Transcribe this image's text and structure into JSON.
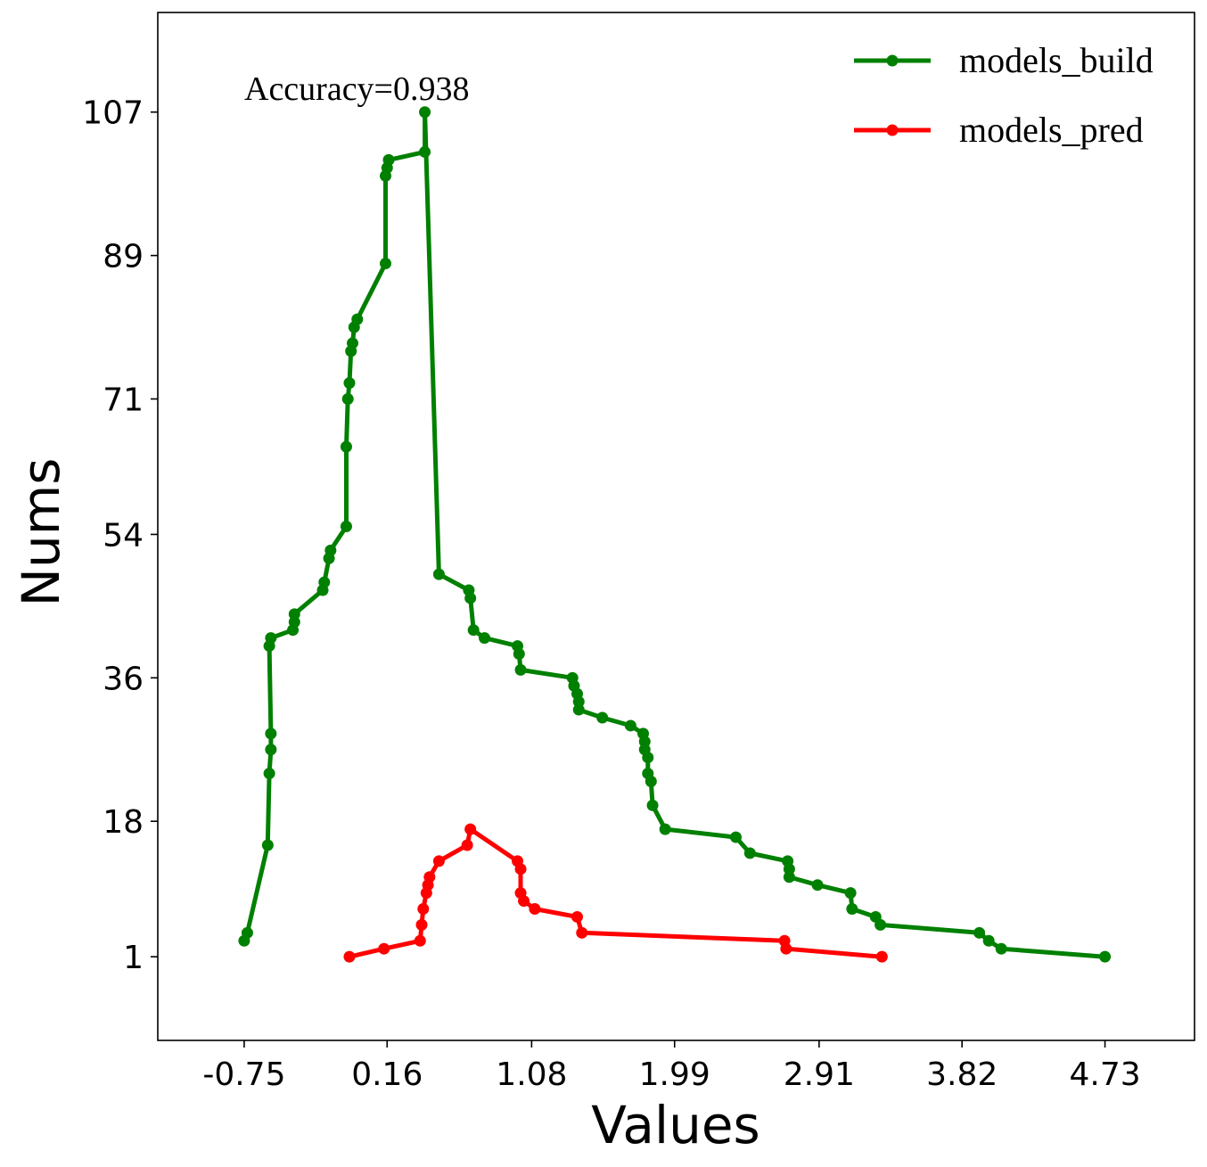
{
  "chart_data": {
    "type": "line",
    "xlabel": "Values",
    "ylabel": "Nums",
    "xlim": [
      -1.3,
      5.3
    ],
    "ylim": [
      -9.5,
      119.5
    ],
    "xticks": [
      -0.75,
      0.16,
      1.08,
      1.99,
      2.91,
      3.82,
      4.73
    ],
    "xtick_labels": [
      "-0.75",
      "0.16",
      "1.08",
      "1.99",
      "2.91",
      "3.82",
      "4.73"
    ],
    "yticks": [
      1,
      18,
      36,
      54,
      71,
      89,
      107
    ],
    "ytick_labels": [
      "1",
      "18",
      "36",
      "54",
      "71",
      "89",
      "107"
    ],
    "grid": false,
    "legend_position": "top-right",
    "annotation": "Accuracy=0.938",
    "series": [
      {
        "name": "models_build",
        "color": "#008000",
        "points": [
          [
            -0.75,
            3
          ],
          [
            -0.73,
            4
          ],
          [
            -0.6,
            15
          ],
          [
            -0.59,
            24
          ],
          [
            -0.58,
            27
          ],
          [
            -0.58,
            29
          ],
          [
            -0.59,
            40
          ],
          [
            -0.58,
            41
          ],
          [
            -0.44,
            42
          ],
          [
            -0.43,
            43
          ],
          [
            -0.43,
            44
          ],
          [
            -0.25,
            47
          ],
          [
            -0.24,
            48
          ],
          [
            -0.21,
            51
          ],
          [
            -0.2,
            52
          ],
          [
            -0.1,
            55
          ],
          [
            -0.1,
            65
          ],
          [
            -0.09,
            71
          ],
          [
            -0.08,
            73
          ],
          [
            -0.07,
            77
          ],
          [
            -0.06,
            78
          ],
          [
            -0.05,
            80
          ],
          [
            -0.03,
            81
          ],
          [
            0.15,
            88
          ],
          [
            0.15,
            99
          ],
          [
            0.16,
            100
          ],
          [
            0.17,
            101
          ],
          [
            0.4,
            102
          ],
          [
            0.4,
            107
          ],
          [
            0.49,
            49
          ],
          [
            0.68,
            47
          ],
          [
            0.69,
            46
          ],
          [
            0.71,
            42
          ],
          [
            0.78,
            41
          ],
          [
            0.99,
            40
          ],
          [
            1.0,
            39
          ],
          [
            1.01,
            37
          ],
          [
            1.34,
            36
          ],
          [
            1.35,
            35
          ],
          [
            1.37,
            34
          ],
          [
            1.38,
            33
          ],
          [
            1.38,
            32
          ],
          [
            1.53,
            31
          ],
          [
            1.71,
            30
          ],
          [
            1.79,
            29
          ],
          [
            1.8,
            28
          ],
          [
            1.8,
            27
          ],
          [
            1.82,
            26
          ],
          [
            1.82,
            24
          ],
          [
            1.84,
            23
          ],
          [
            1.85,
            20
          ],
          [
            1.93,
            17
          ],
          [
            2.38,
            16
          ],
          [
            2.47,
            14
          ],
          [
            2.71,
            13
          ],
          [
            2.72,
            12
          ],
          [
            2.72,
            11
          ],
          [
            2.9,
            10
          ],
          [
            3.11,
            9
          ],
          [
            3.12,
            7
          ],
          [
            3.27,
            6
          ],
          [
            3.3,
            5
          ],
          [
            3.93,
            4
          ],
          [
            3.99,
            3
          ],
          [
            4.07,
            2
          ],
          [
            4.73,
            1
          ]
        ]
      },
      {
        "name": "models_pred",
        "color": "#ff0000",
        "points": [
          [
            -0.08,
            1
          ],
          [
            0.14,
            2
          ],
          [
            0.37,
            3
          ],
          [
            0.38,
            5
          ],
          [
            0.39,
            7
          ],
          [
            0.41,
            9
          ],
          [
            0.42,
            10
          ],
          [
            0.43,
            11
          ],
          [
            0.49,
            13
          ],
          [
            0.67,
            15
          ],
          [
            0.69,
            17
          ],
          [
            0.99,
            13
          ],
          [
            1.01,
            12
          ],
          [
            1.01,
            9
          ],
          [
            1.03,
            8
          ],
          [
            1.1,
            7
          ],
          [
            1.37,
            6
          ],
          [
            1.4,
            4
          ],
          [
            2.69,
            3
          ],
          [
            2.7,
            2
          ],
          [
            3.31,
            1
          ]
        ]
      }
    ]
  }
}
